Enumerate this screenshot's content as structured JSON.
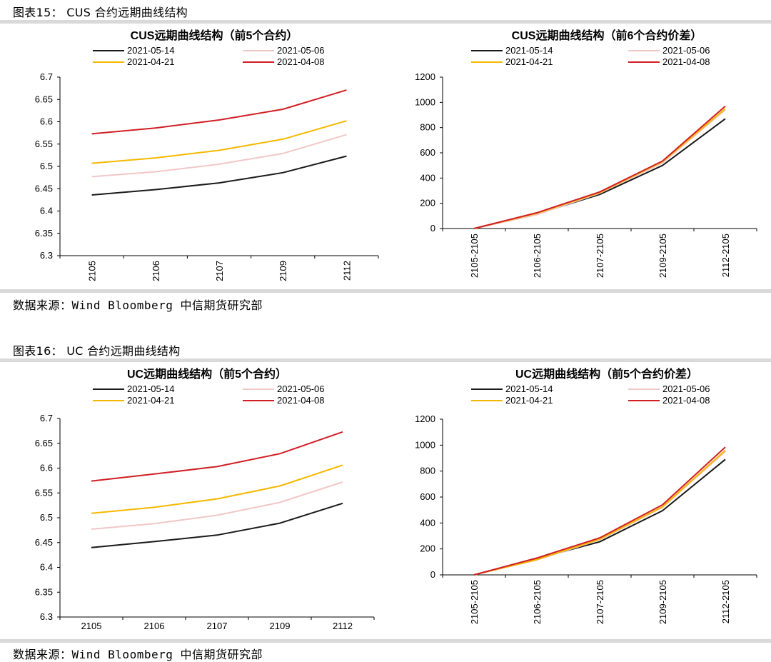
{
  "figures": [
    {
      "title": "图表15： CUS 合约远期曲线结构",
      "source": "数据来源：Wind  Bloomberg  中信期货研究部"
    },
    {
      "title": "图表16： UC 合约远期曲线结构",
      "source": "数据来源：Wind  Bloomberg  中信期货研究部"
    }
  ],
  "colors": {
    "2021-05-14": "#1a1a1a",
    "2021-05-06": "#f2c7c7",
    "2021-04-21": "#f5b800",
    "2021-04-08": "#d01f25"
  },
  "chart_data": [
    {
      "type": "line",
      "title": "CUS远期曲线结构（前5个合约）",
      "categories": [
        "2105",
        "2106",
        "2107",
        "2109",
        "2112"
      ],
      "ylim": [
        6.3,
        6.7
      ],
      "yticks": [
        "6.3",
        "6.35",
        "6.4",
        "6.45",
        "6.5",
        "6.55",
        "6.6",
        "6.65",
        "6.7"
      ],
      "xlabel_rotated": true,
      "legend_position": "top",
      "series": [
        {
          "name": "2021-05-14",
          "values": [
            6.436,
            6.448,
            6.463,
            6.486,
            6.523
          ]
        },
        {
          "name": "2021-05-06",
          "values": [
            6.477,
            6.488,
            6.505,
            6.529,
            6.571
          ]
        },
        {
          "name": "2021-04-21",
          "values": [
            6.507,
            6.519,
            6.536,
            6.561,
            6.602
          ]
        },
        {
          "name": "2021-04-08",
          "values": [
            6.573,
            6.586,
            6.604,
            6.628,
            6.671
          ]
        }
      ]
    },
    {
      "type": "line",
      "title": "CUS远期曲线结构（前6个合约价差）",
      "categories": [
        "2105-2105",
        "2106-2105",
        "2107-2105",
        "2109-2105",
        "2112-2105"
      ],
      "ylim": [
        0,
        1200
      ],
      "yticks": [
        "0",
        "200",
        "400",
        "600",
        "800",
        "1000",
        "1200"
      ],
      "xlabel_rotated": true,
      "legend_position": "top",
      "series": [
        {
          "name": "2021-05-14",
          "values": [
            0,
            115,
            270,
            500,
            870
          ]
        },
        {
          "name": "2021-05-06",
          "values": [
            0,
            110,
            280,
            520,
            940
          ]
        },
        {
          "name": "2021-04-21",
          "values": [
            0,
            120,
            285,
            530,
            950
          ]
        },
        {
          "name": "2021-04-08",
          "values": [
            0,
            125,
            290,
            535,
            970
          ]
        }
      ]
    },
    {
      "type": "line",
      "title": "UC远期曲线结构（前5个合约）",
      "categories": [
        "2105",
        "2106",
        "2107",
        "2109",
        "2112"
      ],
      "ylim": [
        6.3,
        6.7
      ],
      "yticks": [
        "6.3",
        "6.35",
        "6.4",
        "6.45",
        "6.5",
        "6.55",
        "6.6",
        "6.65",
        "6.7"
      ],
      "xlabel_rotated": false,
      "legend_position": "top",
      "series": [
        {
          "name": "2021-05-14",
          "values": [
            6.44,
            6.452,
            6.465,
            6.489,
            6.529
          ]
        },
        {
          "name": "2021-05-06",
          "values": [
            6.477,
            6.488,
            6.505,
            6.531,
            6.572
          ]
        },
        {
          "name": "2021-04-21",
          "values": [
            6.509,
            6.521,
            6.538,
            6.564,
            6.606
          ]
        },
        {
          "name": "2021-04-08",
          "values": [
            6.574,
            6.588,
            6.603,
            6.629,
            6.673
          ]
        }
      ]
    },
    {
      "type": "line",
      "title": "UC远期曲线结构（前5个合约价差）",
      "categories": [
        "2105-2105",
        "2106-2105",
        "2107-2105",
        "2109-2105",
        "2112-2105"
      ],
      "ylim": [
        0,
        1200
      ],
      "yticks": [
        "0",
        "200",
        "400",
        "600",
        "800",
        "1000",
        "1200"
      ],
      "xlabel_rotated": true,
      "legend_position": "top",
      "series": [
        {
          "name": "2021-05-14",
          "values": [
            0,
            125,
            255,
            495,
            890
          ]
        },
        {
          "name": "2021-05-06",
          "values": [
            0,
            115,
            270,
            520,
            950
          ]
        },
        {
          "name": "2021-04-21",
          "values": [
            0,
            118,
            275,
            525,
            960
          ]
        },
        {
          "name": "2021-04-08",
          "values": [
            0,
            130,
            285,
            540,
            985
          ]
        }
      ]
    }
  ]
}
